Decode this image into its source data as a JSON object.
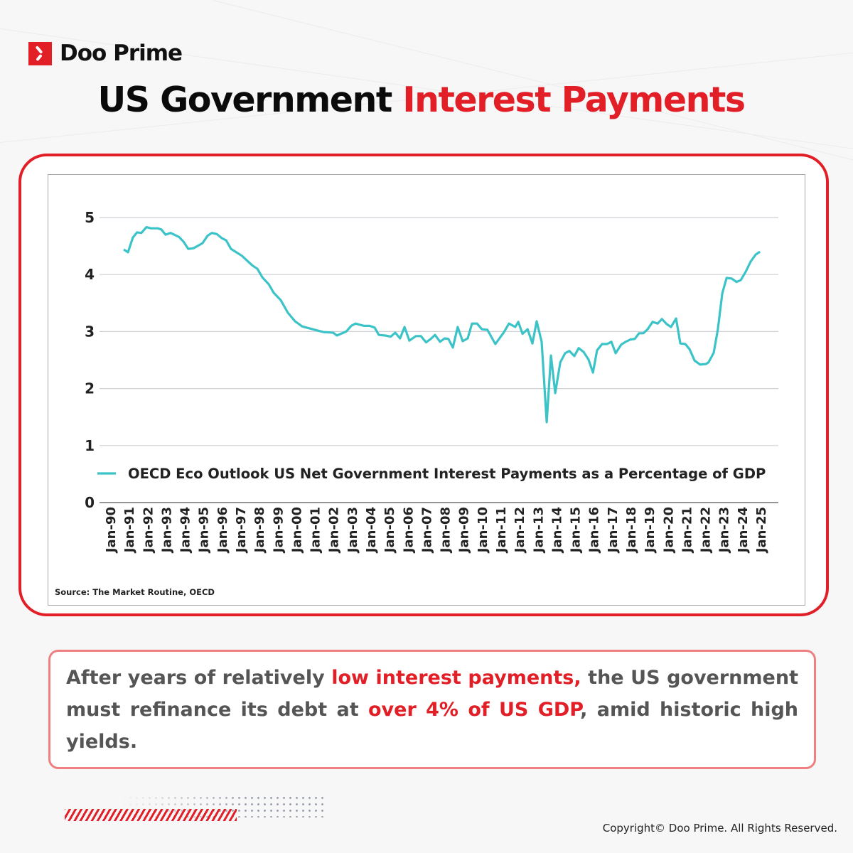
{
  "brand": {
    "name": "Doo Prime",
    "accent": "#e21e26"
  },
  "title": {
    "part1": "US Government",
    "part2": "Interest Payments"
  },
  "chart_data": {
    "type": "line",
    "title": "",
    "xlabel": "",
    "ylabel": "",
    "ylim": [
      0,
      5
    ],
    "yticks": [
      0,
      1,
      2,
      3,
      4,
      5
    ],
    "xlim": [
      1990,
      2025
    ],
    "xticks": [
      "Jan-90",
      "Jan-91",
      "Jan-92",
      "Jan-93",
      "Jan-94",
      "Jan-95",
      "Jan-96",
      "Jan-97",
      "Jan-98",
      "Jan-99",
      "Jan-00",
      "Jan-01",
      "Jan-02",
      "Jan-03",
      "Jan-04",
      "Jan-05",
      "Jan-06",
      "Jan-07",
      "Jan-08",
      "Jan-09",
      "Jan-10",
      "Jan-11",
      "Jan-12",
      "Jan-13",
      "Jan-14",
      "Jan-15",
      "Jan-16",
      "Jan-17",
      "Jan-18",
      "Jan-19",
      "Jan-20",
      "Jan-21",
      "Jan-22",
      "Jan-23",
      "Jan-24",
      "Jan-25"
    ],
    "grid": true,
    "legend_position": "bottom-inside",
    "series": [
      {
        "name": "OECD Eco Outlook US Net Government Interest Payments as a Percentage of GDP",
        "color": "#3cc3c8",
        "points": [
          [
            1990.73,
            4.44
          ],
          [
            1990.96,
            4.39
          ],
          [
            1991.22,
            4.65
          ],
          [
            1991.45,
            4.74
          ],
          [
            1991.68,
            4.73
          ],
          [
            1991.95,
            4.83
          ],
          [
            1992.2,
            4.81
          ],
          [
            1992.56,
            4.81
          ],
          [
            1992.75,
            4.79
          ],
          [
            1992.98,
            4.7
          ],
          [
            1993.25,
            4.73
          ],
          [
            1993.7,
            4.66
          ],
          [
            1993.94,
            4.58
          ],
          [
            1994.2,
            4.45
          ],
          [
            1994.48,
            4.46
          ],
          [
            1994.97,
            4.55
          ],
          [
            1995.24,
            4.68
          ],
          [
            1995.47,
            4.73
          ],
          [
            1995.74,
            4.71
          ],
          [
            1996.0,
            4.64
          ],
          [
            1996.24,
            4.6
          ],
          [
            1996.5,
            4.45
          ],
          [
            1997.08,
            4.33
          ],
          [
            1997.65,
            4.16
          ],
          [
            1997.92,
            4.1
          ],
          [
            1998.19,
            3.95
          ],
          [
            1998.53,
            3.83
          ],
          [
            1998.8,
            3.68
          ],
          [
            1999.18,
            3.55
          ],
          [
            1999.56,
            3.33
          ],
          [
            1999.95,
            3.18
          ],
          [
            2000.33,
            3.09
          ],
          [
            2000.9,
            3.04
          ],
          [
            2001.48,
            2.99
          ],
          [
            2002.0,
            2.98
          ],
          [
            2002.2,
            2.93
          ],
          [
            2002.7,
            3.0
          ],
          [
            2002.97,
            3.1
          ],
          [
            2003.2,
            3.14
          ],
          [
            2003.65,
            3.1
          ],
          [
            2003.96,
            3.1
          ],
          [
            2004.23,
            3.07
          ],
          [
            2004.46,
            2.94
          ],
          [
            2004.8,
            2.93
          ],
          [
            2005.1,
            2.91
          ],
          [
            2005.34,
            2.98
          ],
          [
            2005.6,
            2.88
          ],
          [
            2005.84,
            3.08
          ],
          [
            2006.1,
            2.84
          ],
          [
            2006.45,
            2.92
          ],
          [
            2006.72,
            2.92
          ],
          [
            2007.0,
            2.81
          ],
          [
            2007.25,
            2.87
          ],
          [
            2007.48,
            2.94
          ],
          [
            2007.75,
            2.82
          ],
          [
            2008.0,
            2.88
          ],
          [
            2008.2,
            2.87
          ],
          [
            2008.44,
            2.72
          ],
          [
            2008.7,
            3.08
          ],
          [
            2008.97,
            2.83
          ],
          [
            2009.24,
            2.88
          ],
          [
            2009.47,
            3.14
          ],
          [
            2009.74,
            3.14
          ],
          [
            2010.0,
            3.04
          ],
          [
            2010.3,
            3.03
          ],
          [
            2010.73,
            2.78
          ],
          [
            2011.19,
            2.99
          ],
          [
            2011.46,
            3.14
          ],
          [
            2011.8,
            3.08
          ],
          [
            2011.96,
            3.17
          ],
          [
            2012.19,
            2.96
          ],
          [
            2012.46,
            3.04
          ],
          [
            2012.72,
            2.79
          ],
          [
            2012.95,
            3.18
          ],
          [
            2013.22,
            2.82
          ],
          [
            2013.49,
            1.41
          ],
          [
            2013.72,
            2.58
          ],
          [
            2013.95,
            1.92
          ],
          [
            2014.22,
            2.46
          ],
          [
            2014.48,
            2.62
          ],
          [
            2014.71,
            2.66
          ],
          [
            2014.98,
            2.57
          ],
          [
            2015.21,
            2.71
          ],
          [
            2015.48,
            2.64
          ],
          [
            2015.74,
            2.51
          ],
          [
            2015.98,
            2.28
          ],
          [
            2016.2,
            2.67
          ],
          [
            2016.47,
            2.78
          ],
          [
            2016.74,
            2.78
          ],
          [
            2016.97,
            2.82
          ],
          [
            2017.2,
            2.62
          ],
          [
            2017.5,
            2.77
          ],
          [
            2017.74,
            2.82
          ],
          [
            2018.0,
            2.86
          ],
          [
            2018.23,
            2.87
          ],
          [
            2018.46,
            2.97
          ],
          [
            2018.69,
            2.97
          ],
          [
            2018.92,
            3.04
          ],
          [
            2019.19,
            3.17
          ],
          [
            2019.46,
            3.14
          ],
          [
            2019.69,
            3.22
          ],
          [
            2019.95,
            3.13
          ],
          [
            2020.18,
            3.08
          ],
          [
            2020.45,
            3.23
          ],
          [
            2020.68,
            2.79
          ],
          [
            2020.95,
            2.78
          ],
          [
            2021.18,
            2.69
          ],
          [
            2021.45,
            2.49
          ],
          [
            2021.75,
            2.42
          ],
          [
            2022.06,
            2.43
          ],
          [
            2022.2,
            2.46
          ],
          [
            2022.48,
            2.63
          ],
          [
            2022.7,
            3.04
          ],
          [
            2022.94,
            3.67
          ],
          [
            2023.17,
            3.94
          ],
          [
            2023.44,
            3.93
          ],
          [
            2023.7,
            3.87
          ],
          [
            2023.93,
            3.9
          ],
          [
            2024.2,
            4.05
          ],
          [
            2024.47,
            4.23
          ],
          [
            2024.74,
            4.35
          ],
          [
            2024.97,
            4.4
          ]
        ]
      }
    ],
    "source": "Source: The Market Routine, OECD"
  },
  "caption": {
    "t1": "After years of relatively ",
    "h1": "low interest payments,",
    "t2": " the US government must refinance its debt at ",
    "h2": "over 4% of US GDP",
    "t3": ", amid historic high yields."
  },
  "footer": {
    "copyright": "Copyright© Doo Prime. All Rights Reserved."
  }
}
